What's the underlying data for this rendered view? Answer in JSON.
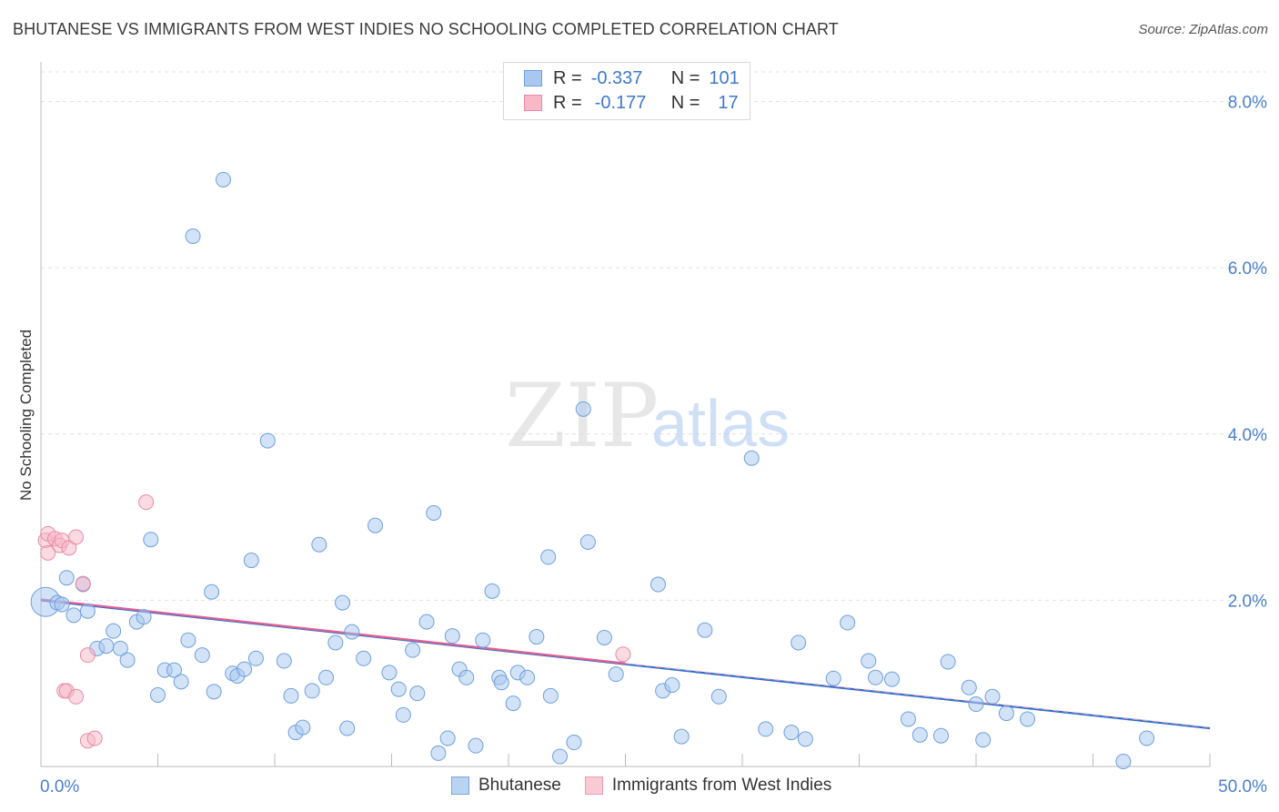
{
  "title": "BHUTANESE VS IMMIGRANTS FROM WEST INDIES NO SCHOOLING COMPLETED CORRELATION CHART",
  "source": "Source: ZipAtlas.com",
  "watermark": {
    "part1": "ZIP",
    "part2": "atlas"
  },
  "legend_top": {
    "rows": [
      {
        "r_label": "R =",
        "r_value": "-0.337",
        "n_label": "N =",
        "n_value": "101",
        "color": "#a8c8f0",
        "border": "#6f9fdc"
      },
      {
        "r_label": "R =",
        "r_value": "-0.177",
        "n_label": "N =",
        "n_value": "17",
        "color": "#f8b8c8",
        "border": "#e88aa6"
      }
    ]
  },
  "legend_bottom": [
    {
      "label": "Bhutanese",
      "color": "#b9d3f3",
      "border": "#7aa6e0"
    },
    {
      "label": "Immigrants from West Indies",
      "color": "#f9c9d6",
      "border": "#ea9ab2"
    }
  ],
  "chart_data": {
    "type": "scatter",
    "title": "BHUTANESE VS IMMIGRANTS FROM WEST INDIES NO SCHOOLING COMPLETED CORRELATION CHART",
    "xlabel": "",
    "ylabel": "No Schooling Completed",
    "xlim": [
      0,
      50
    ],
    "ylim": [
      0,
      8.4
    ],
    "x_tick_labels": [
      "0.0%",
      "50.0%"
    ],
    "y_ticks": [
      2,
      4,
      6,
      8
    ],
    "y_tick_labels": [
      "2.0%",
      "4.0%",
      "6.0%",
      "8.0%"
    ],
    "grid": true,
    "series": [
      {
        "name": "Bhutanese",
        "color": "#a8c8f0",
        "stroke": "#6f9fdc",
        "trend": {
          "x": [
            0,
            50
          ],
          "y": [
            2.0,
            0.46
          ],
          "color": "#2f6fd0"
        },
        "points": [
          [
            0.2,
            1.98
          ],
          [
            0.7,
            1.97
          ],
          [
            0.9,
            1.95
          ],
          [
            1.1,
            2.27
          ],
          [
            1.4,
            1.82
          ],
          [
            1.8,
            2.19
          ],
          [
            2.0,
            1.87
          ],
          [
            2.4,
            1.42
          ],
          [
            2.8,
            1.45
          ],
          [
            3.1,
            1.63
          ],
          [
            3.4,
            1.42
          ],
          [
            3.7,
            1.28
          ],
          [
            4.1,
            1.74
          ],
          [
            4.4,
            1.8
          ],
          [
            4.7,
            2.73
          ],
          [
            5.0,
            0.86
          ],
          [
            5.3,
            1.16
          ],
          [
            5.7,
            1.16
          ],
          [
            6.0,
            1.02
          ],
          [
            6.3,
            1.52
          ],
          [
            6.5,
            6.38
          ],
          [
            6.9,
            1.34
          ],
          [
            7.3,
            2.1
          ],
          [
            7.4,
            0.9
          ],
          [
            7.8,
            7.06
          ],
          [
            8.2,
            1.12
          ],
          [
            8.4,
            1.09
          ],
          [
            8.7,
            1.17
          ],
          [
            9.0,
            2.48
          ],
          [
            9.2,
            1.3
          ],
          [
            9.7,
            3.92
          ],
          [
            10.4,
            1.27
          ],
          [
            10.7,
            0.85
          ],
          [
            10.9,
            0.41
          ],
          [
            11.2,
            0.47
          ],
          [
            11.6,
            0.91
          ],
          [
            11.9,
            2.67
          ],
          [
            12.2,
            1.07
          ],
          [
            12.6,
            1.49
          ],
          [
            12.9,
            1.97
          ],
          [
            13.1,
            0.46
          ],
          [
            13.3,
            1.62
          ],
          [
            13.8,
            1.3
          ],
          [
            14.3,
            2.9
          ],
          [
            14.9,
            1.13
          ],
          [
            15.3,
            0.93
          ],
          [
            15.5,
            0.62
          ],
          [
            15.9,
            1.4
          ],
          [
            16.1,
            0.88
          ],
          [
            16.5,
            1.74
          ],
          [
            16.8,
            3.05
          ],
          [
            17.0,
            0.16
          ],
          [
            17.4,
            0.34
          ],
          [
            17.6,
            1.57
          ],
          [
            17.9,
            1.17
          ],
          [
            18.2,
            1.07
          ],
          [
            18.6,
            0.25
          ],
          [
            18.9,
            1.52
          ],
          [
            19.3,
            2.11
          ],
          [
            19.6,
            1.07
          ],
          [
            19.7,
            1.01
          ],
          [
            20.2,
            0.76
          ],
          [
            20.4,
            1.13
          ],
          [
            20.8,
            1.07
          ],
          [
            21.2,
            1.56
          ],
          [
            21.7,
            2.52
          ],
          [
            21.8,
            0.85
          ],
          [
            22.2,
            0.12
          ],
          [
            22.8,
            0.29
          ],
          [
            23.2,
            4.3
          ],
          [
            23.4,
            2.7
          ],
          [
            24.1,
            1.55
          ],
          [
            24.6,
            1.11
          ],
          [
            26.4,
            2.19
          ],
          [
            26.6,
            0.91
          ],
          [
            27.0,
            0.98
          ],
          [
            27.4,
            0.36
          ],
          [
            28.4,
            1.64
          ],
          [
            29.0,
            0.84
          ],
          [
            30.4,
            3.71
          ],
          [
            31.0,
            0.45
          ],
          [
            32.1,
            0.41
          ],
          [
            32.4,
            1.49
          ],
          [
            32.7,
            0.33
          ],
          [
            33.9,
            1.06
          ],
          [
            34.5,
            1.73
          ],
          [
            35.4,
            1.27
          ],
          [
            35.7,
            1.07
          ],
          [
            36.4,
            1.05
          ],
          [
            37.1,
            0.57
          ],
          [
            37.6,
            0.38
          ],
          [
            38.5,
            0.37
          ],
          [
            38.8,
            1.26
          ],
          [
            39.7,
            0.95
          ],
          [
            40.0,
            0.75
          ],
          [
            40.3,
            0.32
          ],
          [
            40.7,
            0.84
          ],
          [
            41.3,
            0.64
          ],
          [
            42.2,
            0.57
          ],
          [
            46.3,
            0.06
          ],
          [
            47.3,
            0.34
          ]
        ]
      },
      {
        "name": "Immigrants from West Indies",
        "color": "#f8b8c8",
        "stroke": "#e88aa6",
        "trend": {
          "x": [
            0,
            25
          ],
          "y": [
            2.01,
            1.24
          ],
          "color": "#e06090"
        },
        "points": [
          [
            0.2,
            2.72
          ],
          [
            0.3,
            2.8
          ],
          [
            0.3,
            2.57
          ],
          [
            0.6,
            2.74
          ],
          [
            0.8,
            2.66
          ],
          [
            0.9,
            2.72
          ],
          [
            1.0,
            0.91
          ],
          [
            1.1,
            0.91
          ],
          [
            1.2,
            2.63
          ],
          [
            1.5,
            2.76
          ],
          [
            1.5,
            0.84
          ],
          [
            1.8,
            2.2
          ],
          [
            2.0,
            0.31
          ],
          [
            2.0,
            1.34
          ],
          [
            2.3,
            0.34
          ],
          [
            4.5,
            3.18
          ],
          [
            24.9,
            1.35
          ]
        ]
      }
    ]
  }
}
